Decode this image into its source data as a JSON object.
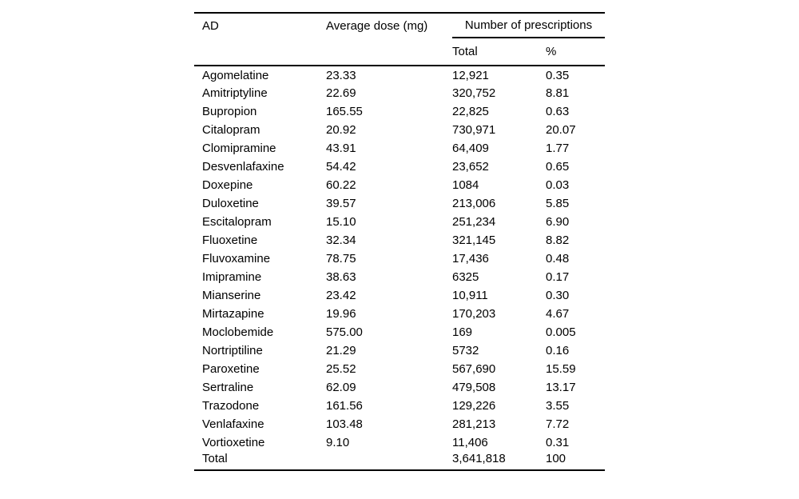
{
  "table": {
    "title_hidden": "",
    "columns": {
      "ad": "AD",
      "avg_dose": "Average dose (mg)",
      "prescriptions_group": "Number of prescriptions",
      "total": "Total",
      "percent": "%"
    },
    "rows": [
      {
        "ad": "Agomelatine",
        "dose": "23.33",
        "total": "12,921",
        "pct": "0.35"
      },
      {
        "ad": "Amitriptyline",
        "dose": "22.69",
        "total": "320,752",
        "pct": "8.81"
      },
      {
        "ad": "Bupropion",
        "dose": "165.55",
        "total": "22,825",
        "pct": "0.63"
      },
      {
        "ad": "Citalopram",
        "dose": "20.92",
        "total": "730,971",
        "pct": "20.07"
      },
      {
        "ad": "Clomipramine",
        "dose": "43.91",
        "total": "64,409",
        "pct": "1.77"
      },
      {
        "ad": "Desvenlafaxine",
        "dose": "54.42",
        "total": "23,652",
        "pct": "0.65"
      },
      {
        "ad": "Doxepine",
        "dose": "60.22",
        "total": "1084",
        "pct": "0.03"
      },
      {
        "ad": "Duloxetine",
        "dose": "39.57",
        "total": "213,006",
        "pct": "5.85"
      },
      {
        "ad": "Escitalopram",
        "dose": "15.10",
        "total": "251,234",
        "pct": "6.90"
      },
      {
        "ad": "Fluoxetine",
        "dose": "32.34",
        "total": "321,145",
        "pct": "8.82"
      },
      {
        "ad": "Fluvoxamine",
        "dose": "78.75",
        "total": "17,436",
        "pct": "0.48"
      },
      {
        "ad": "Imipramine",
        "dose": "38.63",
        "total": "6325",
        "pct": "0.17"
      },
      {
        "ad": "Mianserine",
        "dose": "23.42",
        "total": "10,911",
        "pct": "0.30"
      },
      {
        "ad": "Mirtazapine",
        "dose": "19.96",
        "total": "170,203",
        "pct": "4.67"
      },
      {
        "ad": "Moclobemide",
        "dose": "575.00",
        "total": "169",
        "pct": "0.005"
      },
      {
        "ad": "Nortriptiline",
        "dose": "21.29",
        "total": "5732",
        "pct": "0.16"
      },
      {
        "ad": "Paroxetine",
        "dose": "25.52",
        "total": "567,690",
        "pct": "15.59"
      },
      {
        "ad": "Sertraline",
        "dose": "62.09",
        "total": "479,508",
        "pct": "13.17"
      },
      {
        "ad": "Trazodone",
        "dose": "161.56",
        "total": "129,226",
        "pct": "3.55"
      },
      {
        "ad": "Venlafaxine",
        "dose": "103.48",
        "total": "281,213",
        "pct": "7.72"
      },
      {
        "ad": "Vortioxetine",
        "dose": "9.10",
        "total": "11,406",
        "pct": "0.31"
      },
      {
        "ad": "Total",
        "dose": "",
        "total": "3,641,818",
        "pct": "100"
      }
    ],
    "colors": {
      "text": "#000000",
      "background": "#ffffff",
      "rule": "#000000"
    }
  }
}
